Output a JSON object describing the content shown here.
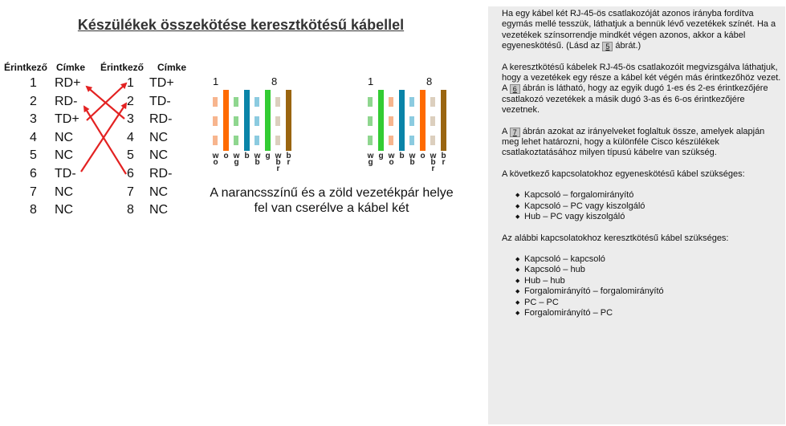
{
  "title": "Készülékek összekötése keresztkötésű kábellel",
  "table": {
    "headers": [
      "Érintkező",
      "Címke",
      "Érintkező",
      "Címke"
    ],
    "left": [
      [
        "1",
        "RD+"
      ],
      [
        "2",
        "RD-"
      ],
      [
        "3",
        "TD+"
      ],
      [
        "4",
        "NC"
      ],
      [
        "5",
        "NC"
      ],
      [
        "6",
        "TD-"
      ],
      [
        "7",
        "NC"
      ],
      [
        "8",
        "NC"
      ]
    ],
    "right": [
      [
        "1",
        "TD+"
      ],
      [
        "2",
        "TD-"
      ],
      [
        "3",
        "RD-"
      ],
      [
        "4",
        "NC"
      ],
      [
        "5",
        "NC"
      ],
      [
        "6",
        "RD-"
      ],
      [
        "7",
        "NC"
      ],
      [
        "8",
        "NC"
      ]
    ],
    "arrow_color": "#e32222"
  },
  "connectors": [
    {
      "pin_first": "1",
      "pin_last": "8",
      "wires": [
        {
          "color": "#f7b58e",
          "striped": true,
          "label": [
            "w",
            "o"
          ]
        },
        {
          "color": "#ff6a00",
          "striped": false,
          "label": [
            "o"
          ]
        },
        {
          "color": "#8fd68f",
          "striped": true,
          "label": [
            "w",
            "g"
          ]
        },
        {
          "color": "#0a84a8",
          "striped": false,
          "label": [
            "b"
          ]
        },
        {
          "color": "#8ccbe0",
          "striped": true,
          "label": [
            "w",
            "b"
          ]
        },
        {
          "color": "#33cc33",
          "striped": false,
          "label": [
            "g"
          ]
        },
        {
          "color": "#dccfbe",
          "striped": true,
          "label": [
            "w",
            "b",
            "r"
          ]
        },
        {
          "color": "#9a6510",
          "striped": false,
          "label": [
            "b",
            "r"
          ]
        }
      ]
    },
    {
      "pin_first": "1",
      "pin_last": "8",
      "wires": [
        {
          "color": "#8fd68f",
          "striped": true,
          "label": [
            "w",
            "g"
          ]
        },
        {
          "color": "#33cc33",
          "striped": false,
          "label": [
            "g"
          ]
        },
        {
          "color": "#f7b58e",
          "striped": true,
          "label": [
            "w",
            "o"
          ]
        },
        {
          "color": "#0a84a8",
          "striped": false,
          "label": [
            "b"
          ]
        },
        {
          "color": "#8ccbe0",
          "striped": true,
          "label": [
            "w",
            "b"
          ]
        },
        {
          "color": "#ff6a00",
          "striped": false,
          "label": [
            "o"
          ]
        },
        {
          "color": "#dccfbe",
          "striped": true,
          "label": [
            "w",
            "b",
            "r"
          ]
        },
        {
          "color": "#9a6510",
          "striped": false,
          "label": [
            "b",
            "r"
          ]
        }
      ]
    }
  ],
  "caption": [
    "A narancsszínű és a zöld vezetékpár helye",
    "fel van cserélve a kábel két"
  ],
  "panel": {
    "p1": [
      "Ha egy kábel két RJ-45-ös csatlakozóját azonos irányba fordítva egymás mellé tesszük, láthatjuk a bennük lévő vezetékek színét. Ha a vezetékek színsorrendje mindkét végen azonos, akkor a kábel egyeneskötésű. (Lásd az ",
      "5",
      " ábrát.)"
    ],
    "p2": [
      "A keresztkötésű kábelek RJ-45-ös csatlakozóit megvizsgálva láthatjuk, hogy a vezetékek egy része a kábel két végén más érintkezőhöz vezet. A ",
      "6",
      " ábrán is látható, hogy az egyik dugó 1-es és 2-es érintkezőjére csatlakozó vezetékek a másik dugó 3-as és 6-os érintkezőjére vezetnek."
    ],
    "p3": [
      "A ",
      "7",
      " ábrán azokat az irányelveket foglaltuk össze, amelyek alapján meg lehet határozni, hogy a különféle Cisco készülékek csatlakoztatásához milyen típusú kábelre van szükség."
    ],
    "p4": "A következő kapcsolatokhoz egyeneskötésű kábel szükséges:",
    "list1": [
      "Kapcsoló – forgalomirányító",
      "Kapcsoló – PC vagy kiszolgáló",
      "Hub – PC vagy kiszolgáló"
    ],
    "p5": "Az alábbi kapcsolatokhoz keresztkötésű kábel szükséges:",
    "list2": [
      "Kapcsoló – kapcsoló",
      "Kapcsoló – hub",
      "Hub – hub",
      "Forgalomirányító – forgalomirányító",
      "PC – PC",
      "Forgalomirányító – PC"
    ]
  }
}
